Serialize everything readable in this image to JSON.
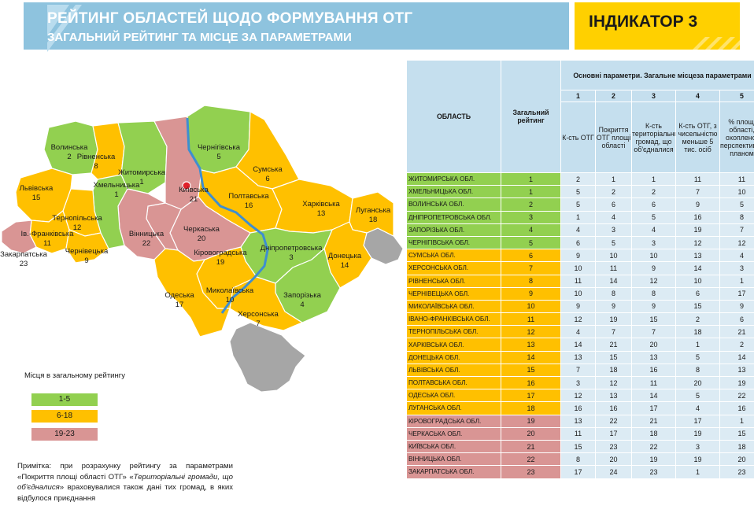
{
  "header": {
    "title": "РЕЙТИНГ ОБЛАСТЕЙ ЩОДО ФОРМУВАННЯ ОТГ",
    "subtitle": "ЗАГАЛЬНИЙ РЕЙТИНГ ТА МІСЦЕ ЗА ПАРАМЕТРАМИ",
    "indicator": "ІНДИКАТОР 3"
  },
  "colors": {
    "green": "#92d050",
    "orange": "#ffc000",
    "pink": "#d99594",
    "header_blue": "#8ec3de",
    "indicator_yellow": "#ffd000",
    "table_head": "#c5dfee",
    "table_cell": "#dcebf4",
    "grey": "#a6a6a6",
    "river": "#3e8ed0"
  },
  "map": {
    "regions": [
      {
        "name": "Волинська",
        "rank": "2",
        "cat": "green"
      },
      {
        "name": "Рівненська",
        "rank": "8",
        "cat": "orange"
      },
      {
        "name": "Житомирська",
        "rank": "1",
        "cat": "green"
      },
      {
        "name": "Чернігівська",
        "rank": "5",
        "cat": "green"
      },
      {
        "name": "Сумська",
        "rank": "6",
        "cat": "orange"
      },
      {
        "name": "Київська",
        "rank": "21",
        "cat": "pink"
      },
      {
        "name": "Хмельницька",
        "rank": "1",
        "cat": "green"
      },
      {
        "name": "Львівська",
        "rank": "15",
        "cat": "orange"
      },
      {
        "name": "Тернопільська",
        "rank": "12",
        "cat": "orange"
      },
      {
        "name": "Полтавська",
        "rank": "16",
        "cat": "orange"
      },
      {
        "name": "Харківська",
        "rank": "13",
        "cat": "orange"
      },
      {
        "name": "Луганська",
        "rank": "18",
        "cat": "orange"
      },
      {
        "name": "Ів.-Франківська",
        "rank": "11",
        "cat": "orange"
      },
      {
        "name": "Вінницька",
        "rank": "22",
        "cat": "pink"
      },
      {
        "name": "Черкаська",
        "rank": "20",
        "cat": "pink"
      },
      {
        "name": "Закарпатська",
        "rank": "23",
        "cat": "pink"
      },
      {
        "name": "Чернівецька",
        "rank": "9",
        "cat": "orange"
      },
      {
        "name": "Кіровоградська",
        "rank": "19",
        "cat": "pink"
      },
      {
        "name": "Дніпропетровська",
        "rank": "3",
        "cat": "green"
      },
      {
        "name": "Донецька",
        "rank": "14",
        "cat": "orange"
      },
      {
        "name": "Одеська",
        "rank": "17",
        "cat": "orange"
      },
      {
        "name": "Миколаївська",
        "rank": "10",
        "cat": "orange"
      },
      {
        "name": "Запорізька",
        "rank": "4",
        "cat": "green"
      },
      {
        "name": "Херсонська",
        "rank": "7",
        "cat": "orange"
      }
    ]
  },
  "legend": {
    "title": "Місця в загальному рейтингу",
    "items": [
      {
        "label": "1-5",
        "cat": "green"
      },
      {
        "label": "6-18",
        "cat": "orange"
      },
      {
        "label": "19-23",
        "cat": "pink"
      }
    ]
  },
  "note": {
    "text1": "Примітка: при розрахунку рейтингу за параметрами «Покриття площі області ОТГ» «",
    "italic": "Територіальні громади, що об'єдналися",
    "text2": "» враховувалися також дані тих громад, в  яких відбулося приєднання"
  },
  "table": {
    "h_region": "ОБЛАСТЬ",
    "h_overall": "Загальний рейтинг",
    "h_main": "Основні параметри. Загальне місцеза параметрами",
    "h_nums": [
      "1",
      "2",
      "3",
      "4",
      "5"
    ],
    "h_params": [
      "К-сть ОТГ",
      "Покриття ОТГ площі області",
      "К-сть територіальних громад, що об'єдналися",
      "К-сть ОТГ, з чисельністю меньше 5 тис. осіб",
      "% площі області, охопленої перспективним планом"
    ],
    "rows": [
      {
        "region": "ЖИТОМИРСЬКА ОБЛ.",
        "overall": "1",
        "p": [
          "2",
          "1",
          "1",
          "11",
          "11"
        ],
        "cat": "green"
      },
      {
        "region": "ХМЕЛЬНИЦЬКА ОБЛ.",
        "overall": "1",
        "p": [
          "5",
          "2",
          "2",
          "7",
          "10"
        ],
        "cat": "green"
      },
      {
        "region": "ВОЛИНСЬКА ОБЛ.",
        "overall": "2",
        "p": [
          "5",
          "6",
          "6",
          "9",
          "5"
        ],
        "cat": "green"
      },
      {
        "region": "ДНІПРОПЕТРОВСЬКА ОБЛ.",
        "overall": "3",
        "p": [
          "1",
          "4",
          "5",
          "16",
          "8"
        ],
        "cat": "green"
      },
      {
        "region": "ЗАПОРІЗЬКА ОБЛ.",
        "overall": "4",
        "p": [
          "4",
          "3",
          "4",
          "19",
          "7"
        ],
        "cat": "green"
      },
      {
        "region": "ЧЕРНІГІВСЬКА ОБЛ.",
        "overall": "5",
        "p": [
          "6",
          "5",
          "3",
          "12",
          "12"
        ],
        "cat": "green"
      },
      {
        "region": "СУМСЬКА ОБЛ.",
        "overall": "6",
        "p": [
          "9",
          "10",
          "10",
          "13",
          "4"
        ],
        "cat": "orange"
      },
      {
        "region": "ХЕРСОНСЬКА ОБЛ.",
        "overall": "7",
        "p": [
          "10",
          "11",
          "9",
          "14",
          "3"
        ],
        "cat": "orange"
      },
      {
        "region": "РІВНЕНСЬКА ОБЛ.",
        "overall": "8",
        "p": [
          "11",
          "14",
          "12",
          "10",
          "1"
        ],
        "cat": "orange"
      },
      {
        "region": "ЧЕРНІВЕЦЬКА ОБЛ.",
        "overall": "9",
        "p": [
          "10",
          "8",
          "8",
          "6",
          "17"
        ],
        "cat": "orange"
      },
      {
        "region": "МИКОЛАЇВСЬКА ОБЛ.",
        "overall": "10",
        "p": [
          "9",
          "9",
          "9",
          "15",
          "9"
        ],
        "cat": "orange"
      },
      {
        "region": "ІВАНО-ФРАНКІВСЬКА ОБЛ.",
        "overall": "11",
        "p": [
          "12",
          "19",
          "15",
          "2",
          "6"
        ],
        "cat": "orange"
      },
      {
        "region": "ТЕРНОПІЛЬСЬКА ОБЛ.",
        "overall": "12",
        "p": [
          "4",
          "7",
          "7",
          "18",
          "21"
        ],
        "cat": "orange"
      },
      {
        "region": "ХАРКІВСЬКА ОБЛ.",
        "overall": "13",
        "p": [
          "14",
          "21",
          "20",
          "1",
          "2"
        ],
        "cat": "orange"
      },
      {
        "region": "ДОНЕЦЬКА ОБЛ.",
        "overall": "14",
        "p": [
          "13",
          "15",
          "13",
          "5",
          "14"
        ],
        "cat": "orange"
      },
      {
        "region": "ЛЬВІВСЬКА ОБЛ.",
        "overall": "15",
        "p": [
          "7",
          "18",
          "16",
          "8",
          "13"
        ],
        "cat": "orange"
      },
      {
        "region": "ПОЛТАВСЬКА ОБЛ.",
        "overall": "16",
        "p": [
          "3",
          "12",
          "11",
          "20",
          "19"
        ],
        "cat": "orange"
      },
      {
        "region": "ОДЕСЬКА ОБЛ.",
        "overall": "17",
        "p": [
          "12",
          "13",
          "14",
          "5",
          "22"
        ],
        "cat": "orange"
      },
      {
        "region": "ЛУГАНСЬКА ОБЛ.",
        "overall": "18",
        "p": [
          "16",
          "16",
          "17",
          "4",
          "16"
        ],
        "cat": "orange"
      },
      {
        "region": "КІРОВОГРАДСЬКА ОБЛ.",
        "overall": "19",
        "p": [
          "13",
          "22",
          "21",
          "17",
          "1"
        ],
        "cat": "pink"
      },
      {
        "region": "ЧЕРКАСЬКА ОБЛ.",
        "overall": "20",
        "p": [
          "11",
          "17",
          "18",
          "19",
          "15"
        ],
        "cat": "pink"
      },
      {
        "region": "КИЇВСЬКА ОБЛ.",
        "overall": "21",
        "p": [
          "15",
          "23",
          "22",
          "3",
          "18"
        ],
        "cat": "pink"
      },
      {
        "region": "ВІННИЦЬКА ОБЛ.",
        "overall": "22",
        "p": [
          "8",
          "20",
          "19",
          "19",
          "20"
        ],
        "cat": "pink"
      },
      {
        "region": "ЗАКАРПАТСЬКА ОБЛ.",
        "overall": "23",
        "p": [
          "17",
          "24",
          "23",
          "1",
          "23"
        ],
        "cat": "pink"
      }
    ]
  }
}
